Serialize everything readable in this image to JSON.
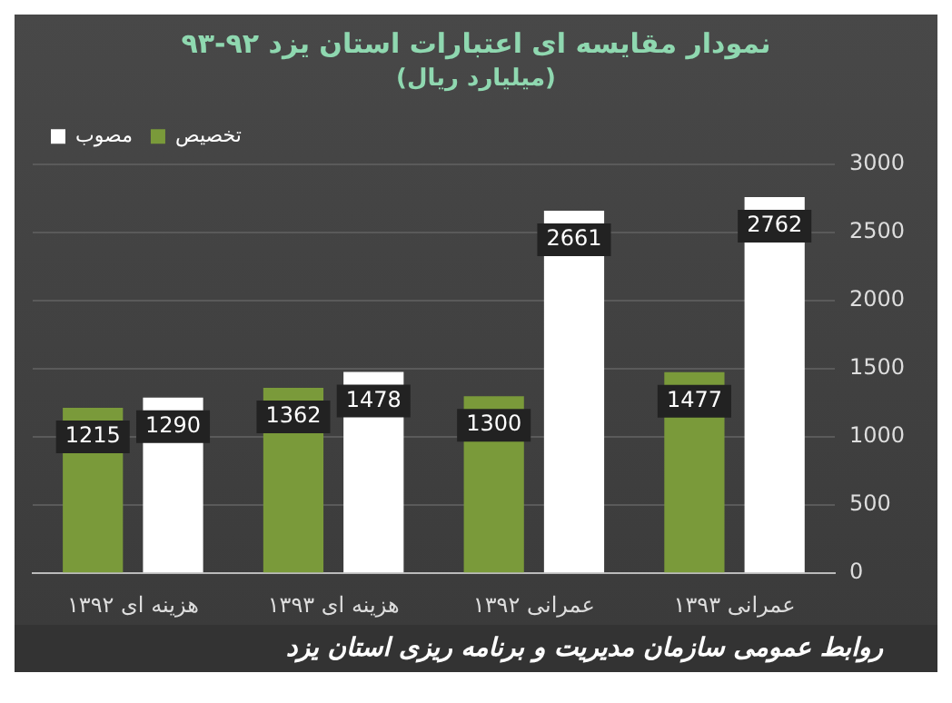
{
  "chart_data": {
    "type": "bar",
    "title": "نمودار مقایسه ای اعتبارات استان یزد ۹۲-۹۳",
    "subtitle": "(میلیارد ریال)",
    "categories": [
      "هزینه ای ۱۳۹۲",
      "هزینه ای ۱۳۹۳",
      "عمرانی ۱۳۹۲",
      "عمرانی ۱۳۹۳"
    ],
    "series": [
      {
        "name": "تخصیص",
        "color": "#7a9a3a",
        "values": [
          1215,
          1362,
          1300,
          1477
        ]
      },
      {
        "name": "مصوب",
        "color": "#ffffff",
        "values": [
          1290,
          1478,
          2661,
          2762
        ]
      }
    ],
    "ylim": [
      0,
      3000
    ],
    "yticks": [
      0,
      500,
      1000,
      1500,
      2000,
      2500,
      3000
    ],
    "grid": "y",
    "legend": "top left",
    "data_labels": true,
    "annotations": [
      "روابط عمومی سازمان مدیریت و برنامه ریزی استان یزد"
    ]
  }
}
